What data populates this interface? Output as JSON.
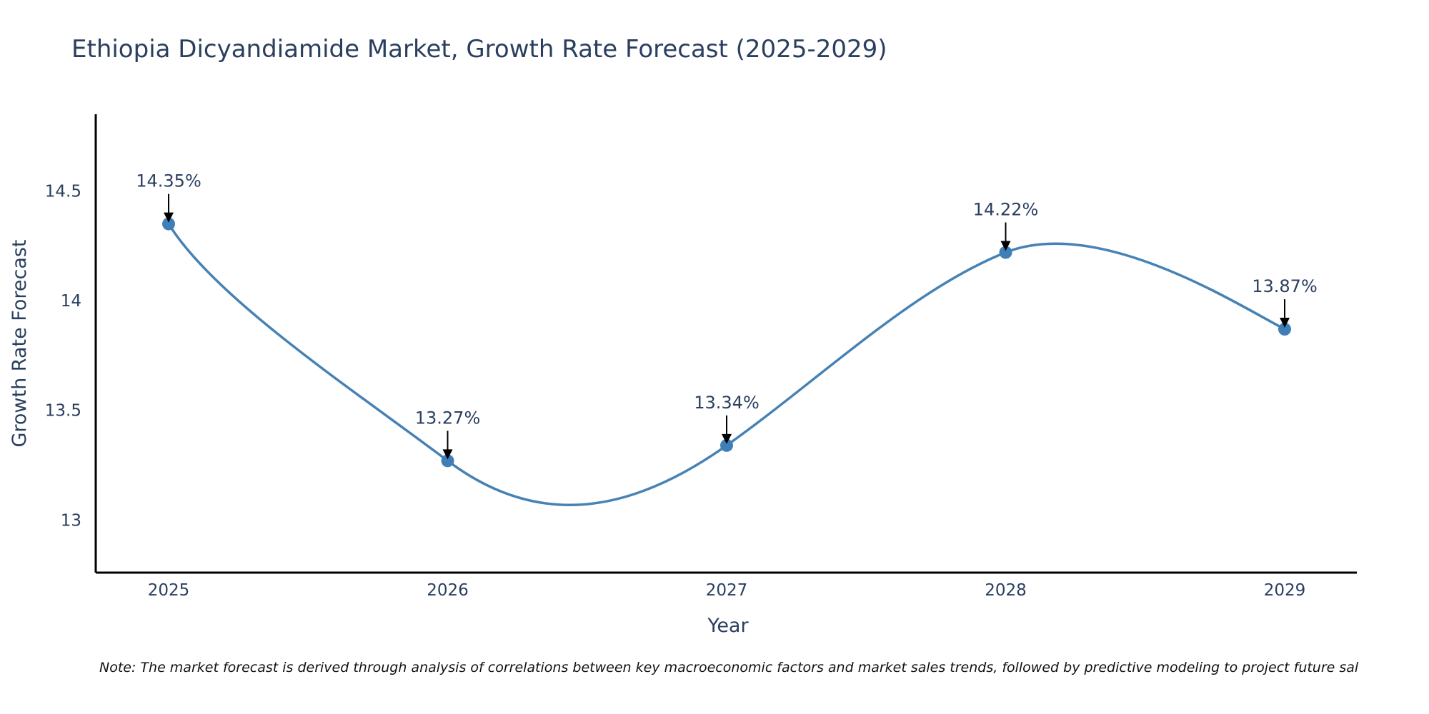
{
  "chart_data": {
    "type": "line",
    "title": "Ethiopia Dicyandiamide Market, Growth Rate Forecast (2025-2029)",
    "xlabel": "Year",
    "ylabel": "Growth Rate Forecast",
    "categories": [
      "2025",
      "2026",
      "2027",
      "2028",
      "2029"
    ],
    "series": [
      {
        "name": "Growth Rate Forecast",
        "values": [
          14.35,
          13.27,
          13.34,
          14.22,
          13.87
        ],
        "labels": [
          "14.35%",
          "13.27%",
          "13.34%",
          "14.22%",
          "13.87%"
        ]
      }
    ],
    "yticks": [
      13,
      13.5,
      14,
      14.5
    ],
    "ytick_labels": [
      "13",
      "13.5",
      "14",
      "14.5"
    ],
    "ylim": [
      12.76,
      14.85
    ],
    "grid": false,
    "line_shape": "spline",
    "line_color": "#4682b4",
    "marker_color": "#3f7fb8",
    "axis_color": "#000000",
    "text_color": "#2a3f5f",
    "note": "Note: The market forecast is derived through analysis of correlations between key macroeconomic factors and market sales trends, followed by predictive modeling to project future sal"
  }
}
